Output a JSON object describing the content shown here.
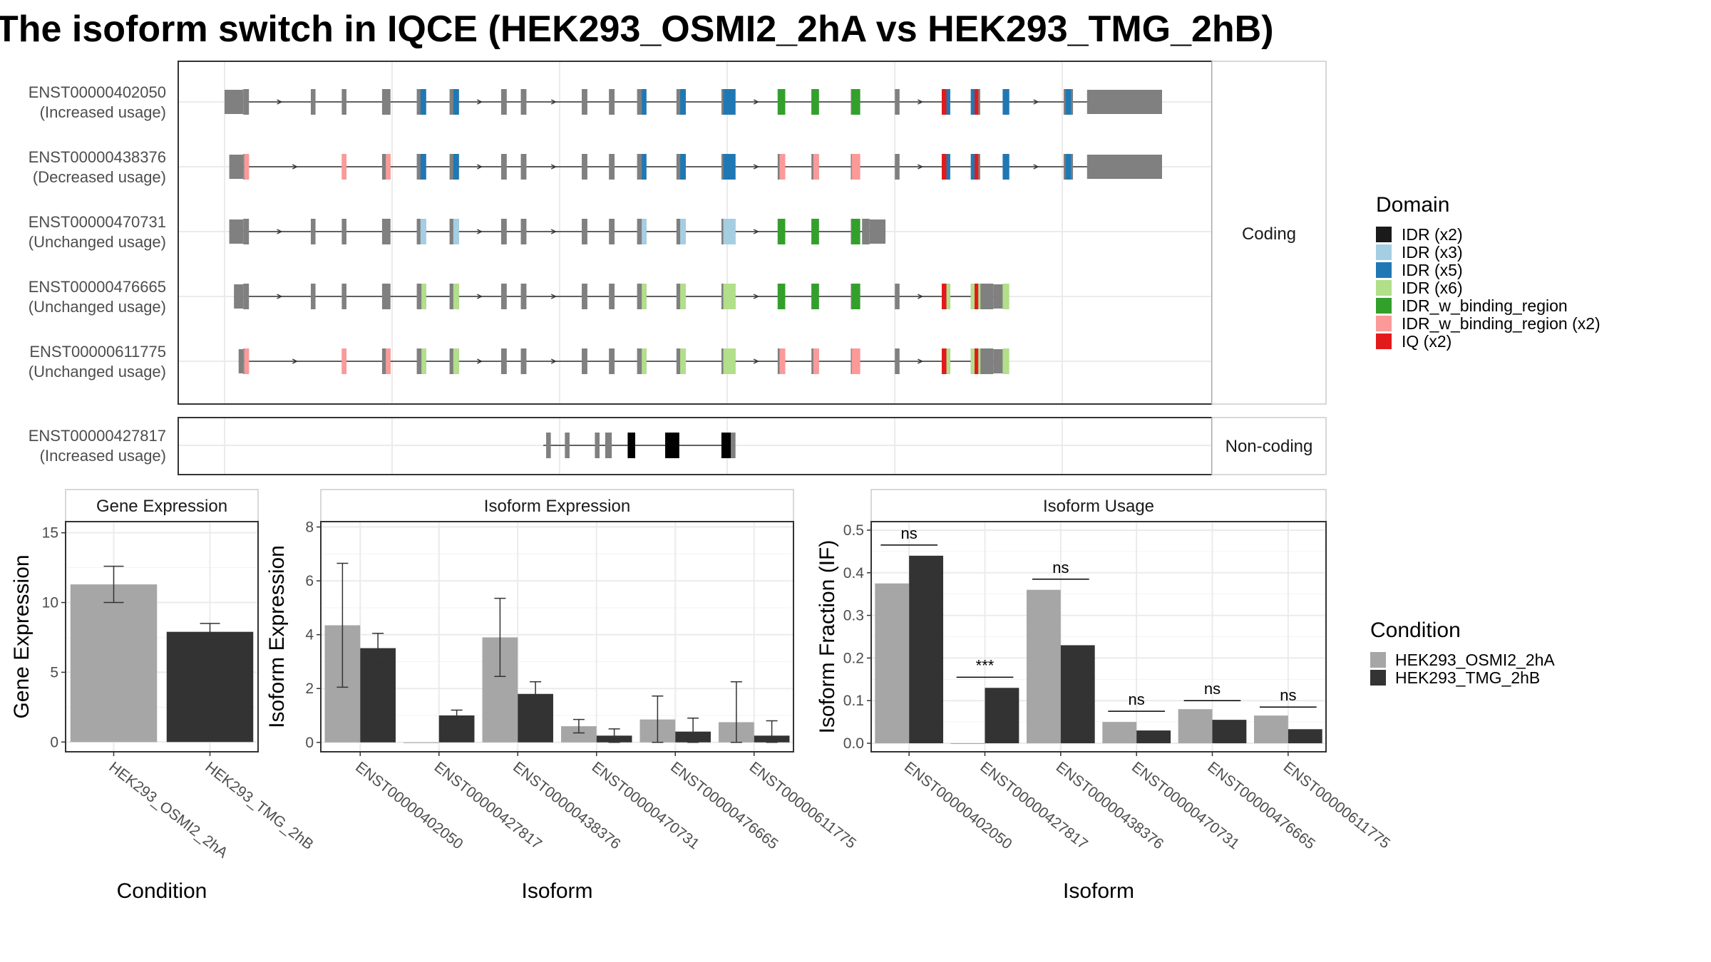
{
  "title": "The isoform switch in IQCE (HEK293_OSMI2_2hA vs HEK293_TMG_2hB)",
  "colors": {
    "exon_default": "#808080",
    "nc_exon": "#000000",
    "cond_a": "#a6a6a6",
    "cond_b": "#333333",
    "panel_border": "#333333",
    "grid": "#ebebeb"
  },
  "structure": {
    "coding_label": "Coding",
    "noncoding_label": "Non-coding",
    "domain_legend_title": "Domain",
    "domains": [
      {
        "name": "IDR (x2)",
        "color": "#1a1a1a"
      },
      {
        "name": "IDR (x3)",
        "color": "#a6cee3"
      },
      {
        "name": "IDR (x5)",
        "color": "#1f78b4"
      },
      {
        "name": "IDR (x6)",
        "color": "#b2df8a"
      },
      {
        "name": "IDR_w_binding_region",
        "color": "#33a02c"
      },
      {
        "name": "IDR_w_binding_region (x2)",
        "color": "#fb9a99"
      },
      {
        "name": "IQ (x2)",
        "color": "#e31a1c"
      }
    ],
    "transcripts": [
      {
        "id": "ENST00000402050",
        "usage": "(Increased usage)",
        "group": "coding",
        "start": 0.0,
        "end": 1.0,
        "utr5": [
          0.0,
          0.02
        ],
        "utr3": [
          0.92,
          1.0
        ],
        "exons": [
          [
            0.02,
            0.026
          ],
          [
            0.092,
            0.097
          ],
          [
            0.125,
            0.13
          ],
          [
            0.168,
            0.177
          ],
          [
            0.205,
            0.215
          ],
          [
            0.24,
            0.25
          ],
          [
            0.295,
            0.301
          ],
          [
            0.316,
            0.322
          ],
          [
            0.381,
            0.387
          ],
          [
            0.41,
            0.416
          ],
          [
            0.44,
            0.45
          ],
          [
            0.482,
            0.492
          ],
          [
            0.53,
            0.545
          ],
          [
            0.59,
            0.598
          ],
          [
            0.626,
            0.634
          ],
          [
            0.668,
            0.678
          ],
          [
            0.715,
            0.72
          ],
          [
            0.765,
            0.774
          ],
          [
            0.796,
            0.806
          ],
          [
            0.83,
            0.837
          ],
          [
            0.895,
            0.905
          ]
        ],
        "domains": [
          [
            0.209,
            0.215,
            "IDR (x5)"
          ],
          [
            0.244,
            0.25,
            "IDR (x5)"
          ],
          [
            0.445,
            0.45,
            "IDR (x5)"
          ],
          [
            0.486,
            0.492,
            "IDR (x5)"
          ],
          [
            0.532,
            0.545,
            "IDR (x5)"
          ],
          [
            0.59,
            0.598,
            "IDR_w_binding_region"
          ],
          [
            0.626,
            0.634,
            "IDR_w_binding_region"
          ],
          [
            0.669,
            0.678,
            "IDR_w_binding_region"
          ],
          [
            0.765,
            0.77,
            "IQ (x2)"
          ],
          [
            0.77,
            0.774,
            "IDR (x5)"
          ],
          [
            0.796,
            0.8,
            "IDR (x5)"
          ],
          [
            0.8,
            0.804,
            "IQ (x2)"
          ],
          [
            0.83,
            0.837,
            "IDR (x5)"
          ],
          [
            0.897,
            0.903,
            "IDR (x5)"
          ]
        ]
      },
      {
        "id": "ENST00000438376",
        "usage": "(Decreased usage)",
        "group": "coding",
        "start": 0.005,
        "end": 1.0,
        "utr5": [
          0.005,
          0.02
        ],
        "utr3": [
          0.92,
          1.0
        ],
        "exons": [
          [
            0.02,
            0.026
          ],
          [
            0.125,
            0.13
          ],
          [
            0.168,
            0.177
          ],
          [
            0.205,
            0.215
          ],
          [
            0.24,
            0.25
          ],
          [
            0.295,
            0.301
          ],
          [
            0.316,
            0.322
          ],
          [
            0.381,
            0.387
          ],
          [
            0.41,
            0.416
          ],
          [
            0.44,
            0.45
          ],
          [
            0.482,
            0.492
          ],
          [
            0.53,
            0.545
          ],
          [
            0.59,
            0.598
          ],
          [
            0.626,
            0.634
          ],
          [
            0.668,
            0.678
          ],
          [
            0.715,
            0.72
          ],
          [
            0.765,
            0.774
          ],
          [
            0.796,
            0.806
          ],
          [
            0.83,
            0.837
          ],
          [
            0.895,
            0.905
          ]
        ],
        "domains": [
          [
            0.021,
            0.026,
            "IDR_w_binding_region (x2)"
          ],
          [
            0.125,
            0.13,
            "IDR_w_binding_region (x2)"
          ],
          [
            0.172,
            0.177,
            "IDR_w_binding_region (x2)"
          ],
          [
            0.209,
            0.215,
            "IDR (x5)"
          ],
          [
            0.244,
            0.25,
            "IDR (x5)"
          ],
          [
            0.445,
            0.45,
            "IDR (x5)"
          ],
          [
            0.486,
            0.492,
            "IDR (x5)"
          ],
          [
            0.532,
            0.545,
            "IDR (x5)"
          ],
          [
            0.592,
            0.598,
            "IDR_w_binding_region (x2)"
          ],
          [
            0.628,
            0.634,
            "IDR_w_binding_region (x2)"
          ],
          [
            0.669,
            0.678,
            "IDR_w_binding_region (x2)"
          ],
          [
            0.765,
            0.77,
            "IQ (x2)"
          ],
          [
            0.77,
            0.774,
            "IDR (x5)"
          ],
          [
            0.796,
            0.8,
            "IDR (x5)"
          ],
          [
            0.8,
            0.804,
            "IQ (x2)"
          ],
          [
            0.83,
            0.837,
            "IDR (x5)"
          ],
          [
            0.897,
            0.903,
            "IDR (x5)"
          ]
        ]
      },
      {
        "id": "ENST00000470731",
        "usage": "(Unchanged usage)",
        "group": "coding",
        "start": 0.005,
        "end": 0.705,
        "utr5": [
          0.005,
          0.02
        ],
        "utr3": [
          0.688,
          0.705
        ],
        "exons": [
          [
            0.02,
            0.026
          ],
          [
            0.092,
            0.097
          ],
          [
            0.125,
            0.13
          ],
          [
            0.168,
            0.177
          ],
          [
            0.205,
            0.215
          ],
          [
            0.24,
            0.25
          ],
          [
            0.295,
            0.301
          ],
          [
            0.316,
            0.322
          ],
          [
            0.381,
            0.387
          ],
          [
            0.41,
            0.416
          ],
          [
            0.44,
            0.45
          ],
          [
            0.482,
            0.492
          ],
          [
            0.53,
            0.545
          ],
          [
            0.59,
            0.598
          ],
          [
            0.626,
            0.634
          ],
          [
            0.668,
            0.678
          ],
          [
            0.68,
            0.688
          ]
        ],
        "domains": [
          [
            0.209,
            0.215,
            "IDR (x3)"
          ],
          [
            0.244,
            0.25,
            "IDR (x3)"
          ],
          [
            0.445,
            0.45,
            "IDR (x3)"
          ],
          [
            0.486,
            0.492,
            "IDR (x3)"
          ],
          [
            0.532,
            0.545,
            "IDR (x3)"
          ],
          [
            0.59,
            0.598,
            "IDR_w_binding_region"
          ],
          [
            0.626,
            0.634,
            "IDR_w_binding_region"
          ],
          [
            0.669,
            0.678,
            "IDR_w_binding_region"
          ]
        ]
      },
      {
        "id": "ENST00000476665",
        "usage": "(Unchanged usage)",
        "group": "coding",
        "start": 0.01,
        "end": 0.83,
        "utr5": [
          0.01,
          0.02
        ],
        "utr3": [
          0.82,
          0.83
        ],
        "exons": [
          [
            0.02,
            0.026
          ],
          [
            0.092,
            0.097
          ],
          [
            0.125,
            0.13
          ],
          [
            0.168,
            0.177
          ],
          [
            0.205,
            0.215
          ],
          [
            0.24,
            0.25
          ],
          [
            0.295,
            0.301
          ],
          [
            0.316,
            0.322
          ],
          [
            0.381,
            0.387
          ],
          [
            0.41,
            0.416
          ],
          [
            0.44,
            0.45
          ],
          [
            0.482,
            0.492
          ],
          [
            0.53,
            0.545
          ],
          [
            0.59,
            0.598
          ],
          [
            0.626,
            0.634
          ],
          [
            0.668,
            0.678
          ],
          [
            0.715,
            0.72
          ],
          [
            0.765,
            0.774
          ],
          [
            0.796,
            0.806
          ],
          [
            0.806,
            0.82
          ]
        ],
        "domains": [
          [
            0.21,
            0.215,
            "IDR (x6)"
          ],
          [
            0.244,
            0.25,
            "IDR (x6)"
          ],
          [
            0.445,
            0.45,
            "IDR (x6)"
          ],
          [
            0.486,
            0.492,
            "IDR (x6)"
          ],
          [
            0.532,
            0.545,
            "IDR (x6)"
          ],
          [
            0.59,
            0.598,
            "IDR_w_binding_region"
          ],
          [
            0.626,
            0.634,
            "IDR_w_binding_region"
          ],
          [
            0.669,
            0.678,
            "IDR_w_binding_region"
          ],
          [
            0.765,
            0.77,
            "IQ (x2)"
          ],
          [
            0.77,
            0.774,
            "IDR (x6)"
          ],
          [
            0.796,
            0.8,
            "IDR (x6)"
          ],
          [
            0.8,
            0.804,
            "IQ (x2)"
          ],
          [
            0.804,
            0.806,
            "IDR (x6)"
          ],
          [
            0.83,
            0.837,
            "IDR (x6)"
          ]
        ]
      },
      {
        "id": "ENST00000611775",
        "usage": "(Unchanged usage)",
        "group": "coding",
        "start": 0.015,
        "end": 0.83,
        "utr5": [
          0.015,
          0.02
        ],
        "utr3": [
          0.82,
          0.83
        ],
        "exons": [
          [
            0.02,
            0.026
          ],
          [
            0.125,
            0.13
          ],
          [
            0.168,
            0.177
          ],
          [
            0.205,
            0.215
          ],
          [
            0.24,
            0.25
          ],
          [
            0.295,
            0.301
          ],
          [
            0.316,
            0.322
          ],
          [
            0.381,
            0.387
          ],
          [
            0.41,
            0.416
          ],
          [
            0.44,
            0.45
          ],
          [
            0.482,
            0.492
          ],
          [
            0.53,
            0.545
          ],
          [
            0.59,
            0.598
          ],
          [
            0.626,
            0.634
          ],
          [
            0.668,
            0.678
          ],
          [
            0.715,
            0.72
          ],
          [
            0.765,
            0.774
          ],
          [
            0.796,
            0.806
          ],
          [
            0.806,
            0.82
          ]
        ],
        "domains": [
          [
            0.021,
            0.026,
            "IDR_w_binding_region (x2)"
          ],
          [
            0.125,
            0.13,
            "IDR_w_binding_region (x2)"
          ],
          [
            0.172,
            0.177,
            "IDR_w_binding_region (x2)"
          ],
          [
            0.21,
            0.215,
            "IDR (x6)"
          ],
          [
            0.244,
            0.25,
            "IDR (x6)"
          ],
          [
            0.445,
            0.45,
            "IDR (x6)"
          ],
          [
            0.486,
            0.492,
            "IDR (x6)"
          ],
          [
            0.532,
            0.545,
            "IDR (x6)"
          ],
          [
            0.592,
            0.598,
            "IDR_w_binding_region (x2)"
          ],
          [
            0.628,
            0.634,
            "IDR_w_binding_region (x2)"
          ],
          [
            0.669,
            0.678,
            "IDR_w_binding_region (x2)"
          ],
          [
            0.765,
            0.77,
            "IQ (x2)"
          ],
          [
            0.77,
            0.774,
            "IDR (x6)"
          ],
          [
            0.796,
            0.8,
            "IDR (x6)"
          ],
          [
            0.8,
            0.804,
            "IQ (x2)"
          ],
          [
            0.804,
            0.806,
            "IDR (x6)"
          ],
          [
            0.83,
            0.837,
            "IDR (x6)"
          ]
        ]
      },
      {
        "id": "ENST00000427817",
        "usage": "(Increased usage)",
        "group": "noncoding",
        "start": 0.34,
        "end": 0.535,
        "exons": [
          [
            0.343,
            0.348
          ],
          [
            0.363,
            0.368
          ],
          [
            0.395,
            0.4
          ],
          [
            0.406,
            0.413
          ],
          [
            0.43,
            0.438
          ],
          [
            0.47,
            0.485
          ],
          [
            0.53,
            0.54
          ],
          [
            0.54,
            0.545
          ]
        ],
        "nc_exons": [
          [
            0.43,
            0.438
          ],
          [
            0.47,
            0.485
          ],
          [
            0.53,
            0.54
          ]
        ]
      }
    ]
  },
  "chart_data": [
    {
      "type": "bar",
      "title": "Gene Expression",
      "xlabel": "Condition",
      "ylabel": "Gene Expression",
      "categories": [
        "HEK293_OSMI2_2hA",
        "HEK293_TMG_2hB"
      ],
      "values": [
        11.3,
        7.9
      ],
      "errors": [
        [
          10.0,
          12.6
        ],
        [
          7.4,
          8.5
        ]
      ],
      "ylim": [
        -0.7,
        15.8
      ],
      "yticks": [
        0,
        5,
        10,
        15
      ],
      "grid": true
    },
    {
      "type": "bar",
      "title": "Isoform Expression",
      "xlabel": "Isoform",
      "ylabel": "Isoform Expression",
      "categories": [
        "ENST00000402050",
        "ENST00000427817",
        "ENST00000438376",
        "ENST00000470731",
        "ENST00000476665",
        "ENST00000611775"
      ],
      "series": [
        {
          "name": "HEK293_OSMI2_2hA",
          "values": [
            4.35,
            0.0,
            3.9,
            0.6,
            0.85,
            0.75
          ],
          "errors": [
            [
              2.05,
              6.65
            ],
            [
              0.0,
              0.0
            ],
            [
              2.45,
              5.35
            ],
            [
              0.35,
              0.85
            ],
            [
              0.0,
              1.72
            ],
            [
              0.0,
              2.25
            ]
          ]
        },
        {
          "name": "HEK293_TMG_2hB",
          "values": [
            3.5,
            1.0,
            1.8,
            0.25,
            0.4,
            0.25
          ],
          "errors": [
            [
              2.95,
              4.05
            ],
            [
              0.8,
              1.2
            ],
            [
              1.35,
              2.25
            ],
            [
              0.0,
              0.5
            ],
            [
              0.0,
              0.9
            ],
            [
              0.0,
              0.8
            ]
          ]
        }
      ],
      "ylim": [
        -0.35,
        8.2
      ],
      "yticks": [
        0,
        2,
        4,
        6,
        8
      ],
      "grid": true
    },
    {
      "type": "bar",
      "title": "Isoform Usage",
      "xlabel": "Isoform",
      "ylabel": "Isoform Fraction (IF)",
      "categories": [
        "ENST00000402050",
        "ENST00000427817",
        "ENST00000438376",
        "ENST00000470731",
        "ENST00000476665",
        "ENST00000611775"
      ],
      "series": [
        {
          "name": "HEK293_OSMI2_2hA",
          "values": [
            0.375,
            0.0,
            0.36,
            0.05,
            0.08,
            0.065
          ]
        },
        {
          "name": "HEK293_TMG_2hB",
          "values": [
            0.44,
            0.13,
            0.23,
            0.03,
            0.055,
            0.033
          ]
        }
      ],
      "significance": [
        "ns",
        "***",
        "ns",
        "ns",
        "ns",
        "ns"
      ],
      "sig_levels": [
        0.465,
        0.155,
        0.385,
        0.075,
        0.1,
        0.085
      ],
      "ylim": [
        -0.02,
        0.52
      ],
      "yticks": [
        0.0,
        0.1,
        0.2,
        0.3,
        0.4,
        0.5
      ],
      "grid": true
    }
  ],
  "condition_legend": {
    "title": "Condition",
    "items": [
      {
        "name": "HEK293_OSMI2_2hA",
        "color": "#a6a6a6"
      },
      {
        "name": "HEK293_TMG_2hB",
        "color": "#333333"
      }
    ]
  }
}
